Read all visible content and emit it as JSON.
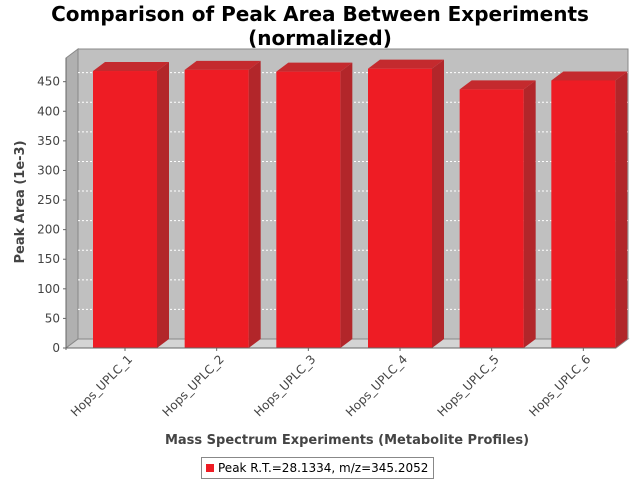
{
  "chart_data": {
    "type": "bar",
    "title_lines": [
      "Comparison of Peak Area Between Experiments",
      "(normalized)"
    ],
    "xlabel": "Mass Spectrum Experiments (Metabolite Profiles)",
    "ylabel": "Peak Area (1e-3)",
    "categories": [
      "Hops_UPLC_1",
      "Hops_UPLC_2",
      "Hops_UPLC_3",
      "Hops_UPLC_4",
      "Hops_UPLC_5",
      "Hops_UPLC_6"
    ],
    "series": [
      {
        "name": "Peak R.T.=28.1334, m/z=345.2052",
        "values": [
          468,
          470,
          467,
          472,
          437,
          452
        ],
        "color": "#ee1c24"
      }
    ],
    "ylim": [
      0,
      490
    ],
    "yticks": [
      0,
      50,
      100,
      150,
      200,
      250,
      300,
      350,
      400,
      450
    ],
    "grid": true,
    "three_d": true,
    "plot_background": "#c0c0c0",
    "legend_position": "bottom"
  }
}
